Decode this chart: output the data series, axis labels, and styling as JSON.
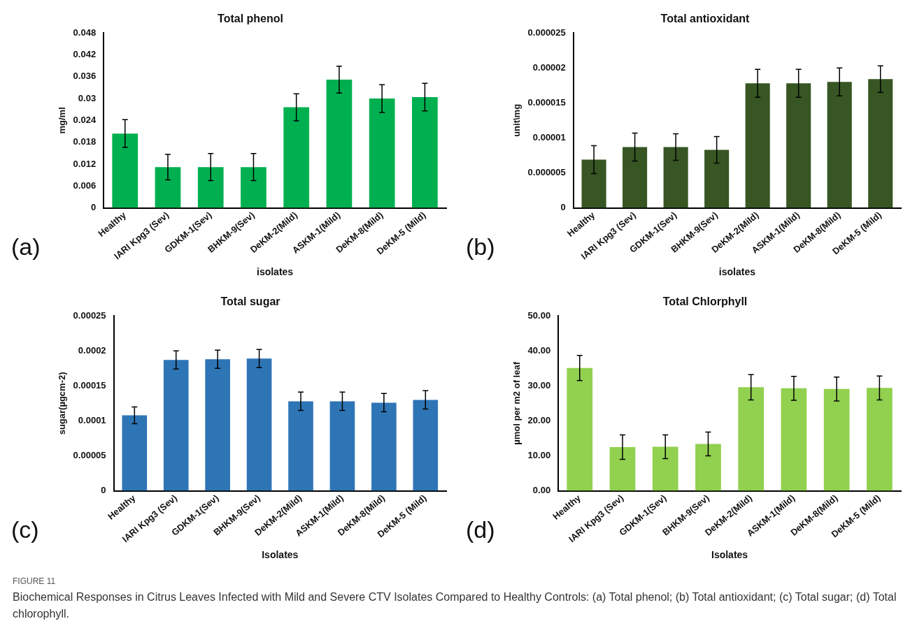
{
  "chart_data": [
    {
      "type": "bar",
      "title": "Total phenol",
      "xlabel": "isolates",
      "ylabel": "mg/ml",
      "categories": [
        "Healthy",
        "IARI Kpg3 (Sev)",
        "GDKM-1(Sev)",
        "BHKM-9(Sev)",
        "DeKM-2(Mild)",
        "ASKM-1(Mild)",
        "DeKM-8(Mild)",
        "DeKM-5 (Mild)"
      ],
      "values": [
        0.0204,
        0.0112,
        0.0112,
        0.0112,
        0.0276,
        0.0352,
        0.03,
        0.0304
      ],
      "errors": [
        0.0038,
        0.0035,
        0.0037,
        0.0037,
        0.0037,
        0.0037,
        0.0038,
        0.0038
      ],
      "color": "#00b050",
      "ylim": [
        0,
        0.048
      ],
      "yticks": [
        0,
        0.006,
        0.012,
        0.018,
        0.024,
        0.03,
        0.036,
        0.042,
        0.048
      ],
      "annotations": [
        "(a)"
      ]
    },
    {
      "type": "bar",
      "title": "Total antioxidant",
      "xlabel": "isolates",
      "ylabel": "unit\\mg",
      "categories": [
        "Healthy",
        "IARI Kpg3 (Sev)",
        "GDKM-1(Sev)",
        "BHKM-9(Sev)",
        "DeKM-2(Mild)",
        "ASKM-1(Mild)",
        "DeKM-8(Mild)",
        "DeKM-5 (Mild)"
      ],
      "values": [
        6.9e-06,
        8.7e-06,
        8.7e-06,
        8.3e-06,
        1.78e-05,
        1.78e-05,
        1.8e-05,
        1.84e-05
      ],
      "errors": [
        2e-06,
        2e-06,
        1.9e-06,
        1.9e-06,
        2e-06,
        2e-06,
        2e-06,
        1.9e-06
      ],
      "color": "#375623",
      "ylim": [
        0,
        2.5e-05
      ],
      "yticks": [
        0,
        {
          "value": 5e-06,
          "label": "0.000005"
        },
        {
          "value": 1e-05,
          "label": "0.00001"
        },
        {
          "value": 1.5e-05,
          "label": "0.000015"
        },
        {
          "value": 2e-05,
          "label": "0.00002"
        },
        {
          "value": 2.5e-05,
          "label": "0.000025"
        }
      ],
      "annotations": [
        "(b)"
      ]
    },
    {
      "type": "bar",
      "title": "Total sugar",
      "xlabel": "Isolates",
      "ylabel": "sugar(µgcm-2)",
      "categories": [
        "Healthy",
        "IARI Kpg3 (Sev)",
        "GDKM-1(Sev)",
        "BHKM-9(Sev)",
        "DeKM-2(Mild)",
        "ASKM-1(Mild)",
        "DeKM-8(Mild)",
        "DeKM-5 (Mild)"
      ],
      "values": [
        0.000108,
        0.000187,
        0.000188,
        0.000189,
        0.000128,
        0.000128,
        0.000126,
        0.00013
      ],
      "errors": [
        1.2e-05,
        1.3e-05,
        1.3e-05,
        1.3e-05,
        1.3e-05,
        1.3e-05,
        1.3e-05,
        1.3e-05
      ],
      "color": "#2e75b6",
      "ylim": [
        0,
        0.00025
      ],
      "yticks": [
        0,
        {
          "value": 5e-05,
          "label": "0.00005"
        },
        {
          "value": 0.0001,
          "label": "0.0001"
        },
        {
          "value": 0.00015,
          "label": "0.00015"
        },
        {
          "value": 0.0002,
          "label": "0.0002"
        },
        {
          "value": 0.00025,
          "label": "0.00025"
        }
      ],
      "annotations": [
        "(c)"
      ]
    },
    {
      "type": "bar",
      "title": "Total Chlorphyll",
      "xlabel": "Isolates",
      "ylabel": "µmol per m2 of leaf",
      "categories": [
        "Healthy",
        "IARI Kpg3 (Sev)",
        "GDKM-1(Sev)",
        "BHKM-9(Sev)",
        "DeKM-2(Mild)",
        "ASKM-1(Mild)",
        "DeKM-8(Mild)",
        "DeKM-5 (Mild)"
      ],
      "values": [
        35.1,
        12.5,
        12.6,
        13.4,
        29.6,
        29.3,
        29.1,
        29.4
      ],
      "errors": [
        3.6,
        3.5,
        3.4,
        3.4,
        3.6,
        3.4,
        3.4,
        3.4
      ],
      "color": "#92d050",
      "ylim": [
        0,
        50
      ],
      "yticks": [
        {
          "value": 0,
          "label": "0.00"
        },
        {
          "value": 10,
          "label": "10.00"
        },
        {
          "value": 20,
          "label": "20.00"
        },
        {
          "value": 30,
          "label": "30.00"
        },
        {
          "value": 40,
          "label": "40.00"
        },
        {
          "value": 50,
          "label": "50.00"
        }
      ],
      "annotations": [
        "(d)",
        "FIGURE 11",
        "Biochemical Responses in Citrus Leaves Infected with Mild and Severe CTV Isolates Compared to Healthy Controls: (a) Total phenol; (b) Total antioxidant; (c) Total sugar; (d) Total chlorophyll."
      ]
    }
  ]
}
